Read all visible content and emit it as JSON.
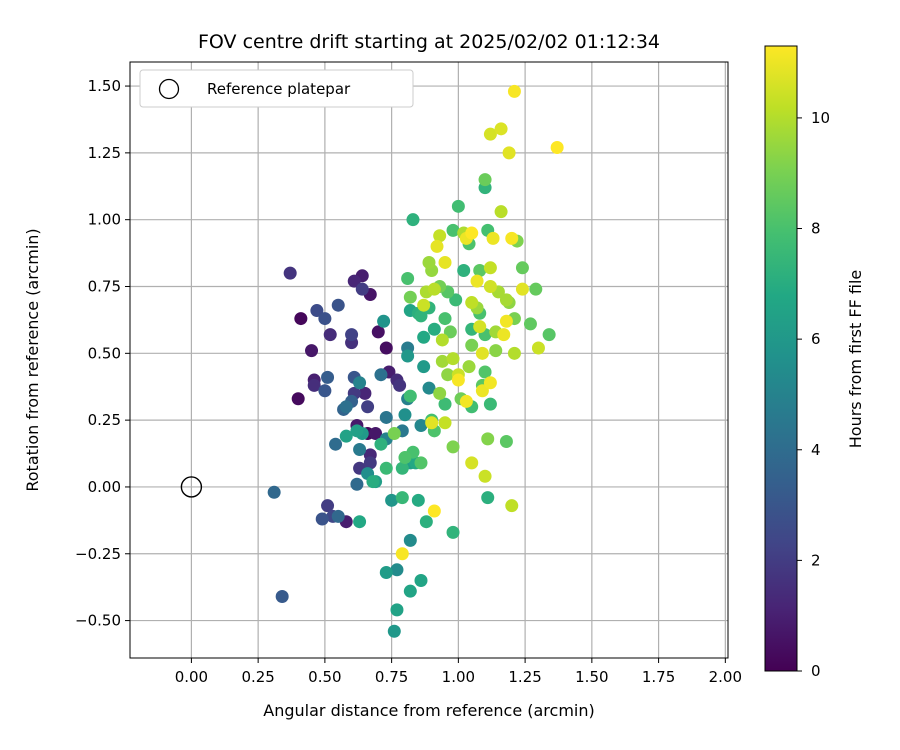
{
  "chart_data": {
    "type": "scatter",
    "title": "FOV centre drift starting at 2025/02/02 01:12:34",
    "xlabel": "Angular distance from reference (arcmin)",
    "ylabel": "Rotation from reference (arcmin)",
    "xlim": [
      -0.23,
      2.01
    ],
    "ylim": [
      -0.64,
      1.59
    ],
    "xticks": [
      0.0,
      0.25,
      0.5,
      0.75,
      1.0,
      1.25,
      1.5,
      1.75,
      2.0
    ],
    "xtick_labels": [
      "0.00",
      "0.25",
      "0.50",
      "0.75",
      "1.00",
      "1.25",
      "1.50",
      "1.75",
      "2.00"
    ],
    "yticks": [
      -0.5,
      -0.25,
      0.0,
      0.25,
      0.5,
      0.75,
      1.0,
      1.25,
      1.5
    ],
    "ytick_labels": [
      "−0.50",
      "−0.25",
      "0.00",
      "0.25",
      "0.50",
      "0.75",
      "1.00",
      "1.25",
      "1.50"
    ],
    "grid": true,
    "legend": {
      "placement": "upper-left",
      "entries": [
        "Reference platepar"
      ]
    },
    "reference_point": {
      "x": 0.0,
      "y": 0.0
    },
    "colorbar": {
      "label": "Hours from first FF file",
      "colormap": "viridis",
      "range": [
        0,
        11.3
      ],
      "ticks": [
        0,
        2,
        4,
        6,
        8,
        10
      ],
      "tick_labels": [
        "0",
        "2",
        "4",
        "6",
        "8",
        "10"
      ]
    },
    "points": [
      {
        "x": 0.41,
        "y": 0.63,
        "c": 0.2
      },
      {
        "x": 0.4,
        "y": 0.33,
        "c": 0.3
      },
      {
        "x": 0.66,
        "y": 0.2,
        "c": 0.2
      },
      {
        "x": 0.7,
        "y": 0.58,
        "c": 0.5
      },
      {
        "x": 0.73,
        "y": 0.52,
        "c": 0.4
      },
      {
        "x": 0.67,
        "y": 0.72,
        "c": 0.6
      },
      {
        "x": 0.45,
        "y": 0.51,
        "c": 0.7
      },
      {
        "x": 0.64,
        "y": 0.79,
        "c": 0.9
      },
      {
        "x": 0.46,
        "y": 0.4,
        "c": 1.0
      },
      {
        "x": 0.61,
        "y": 0.77,
        "c": 1.2
      },
      {
        "x": 0.58,
        "y": -0.13,
        "c": 0.9
      },
      {
        "x": 0.62,
        "y": 0.23,
        "c": 0.8
      },
      {
        "x": 0.69,
        "y": 0.2,
        "c": 0.7
      },
      {
        "x": 0.67,
        "y": 0.12,
        "c": 1.3
      },
      {
        "x": 0.74,
        "y": 0.43,
        "c": 0.9
      },
      {
        "x": 0.77,
        "y": 0.4,
        "c": 1.4
      },
      {
        "x": 0.37,
        "y": 0.8,
        "c": 1.7
      },
      {
        "x": 0.46,
        "y": 0.38,
        "c": 1.5
      },
      {
        "x": 0.52,
        "y": 0.57,
        "c": 1.4
      },
      {
        "x": 0.6,
        "y": 0.54,
        "c": 1.6
      },
      {
        "x": 0.63,
        "y": 0.07,
        "c": 1.8
      },
      {
        "x": 0.65,
        "y": 0.35,
        "c": 1.2
      },
      {
        "x": 0.61,
        "y": 0.35,
        "c": 1.9
      },
      {
        "x": 0.51,
        "y": -0.07,
        "c": 2.0
      },
      {
        "x": 0.67,
        "y": 0.09,
        "c": 1.9
      },
      {
        "x": 0.64,
        "y": 0.74,
        "c": 2.0
      },
      {
        "x": 0.78,
        "y": 0.38,
        "c": 1.7
      },
      {
        "x": 0.6,
        "y": 0.57,
        "c": 2.2
      },
      {
        "x": 0.66,
        "y": 0.3,
        "c": 2.1
      },
      {
        "x": 0.53,
        "y": -0.11,
        "c": 2.4
      },
      {
        "x": 0.47,
        "y": 0.66,
        "c": 2.6
      },
      {
        "x": 0.5,
        "y": 0.63,
        "c": 2.8
      },
      {
        "x": 0.49,
        "y": -0.12,
        "c": 2.9
      },
      {
        "x": 0.55,
        "y": 0.68,
        "c": 2.9
      },
      {
        "x": 0.61,
        "y": 0.41,
        "c": 3.0
      },
      {
        "x": 0.5,
        "y": 0.36,
        "c": 3.0
      },
      {
        "x": 0.51,
        "y": 0.41,
        "c": 3.3
      },
      {
        "x": 0.34,
        "y": -0.41,
        "c": 3.2
      },
      {
        "x": 0.6,
        "y": 0.32,
        "c": 3.5
      },
      {
        "x": 0.57,
        "y": 0.29,
        "c": 3.6
      },
      {
        "x": 0.31,
        "y": -0.02,
        "c": 3.8
      },
      {
        "x": 0.55,
        "y": -0.11,
        "c": 3.8
      },
      {
        "x": 0.62,
        "y": 0.01,
        "c": 3.9
      },
      {
        "x": 0.54,
        "y": 0.16,
        "c": 4.0
      },
      {
        "x": 0.58,
        "y": 0.3,
        "c": 4.2
      },
      {
        "x": 0.71,
        "y": 0.42,
        "c": 4.2
      },
      {
        "x": 0.73,
        "y": 0.26,
        "c": 4.4
      },
      {
        "x": 0.63,
        "y": 0.14,
        "c": 4.6
      },
      {
        "x": 0.81,
        "y": 0.52,
        "c": 4.7
      },
      {
        "x": 0.81,
        "y": 0.33,
        "c": 4.9
      },
      {
        "x": 0.79,
        "y": 0.21,
        "c": 4.5
      },
      {
        "x": 0.73,
        "y": 0.18,
        "c": 5.0
      },
      {
        "x": 0.63,
        "y": 0.39,
        "c": 5.0
      },
      {
        "x": 0.77,
        "y": -0.31,
        "c": 5.4
      },
      {
        "x": 0.82,
        "y": -0.2,
        "c": 5.4
      },
      {
        "x": 0.86,
        "y": 0.23,
        "c": 5.2
      },
      {
        "x": 0.89,
        "y": 0.37,
        "c": 5.3
      },
      {
        "x": 0.66,
        "y": 0.05,
        "c": 5.5
      },
      {
        "x": 0.72,
        "y": 0.62,
        "c": 5.8
      },
      {
        "x": 0.8,
        "y": 0.27,
        "c": 5.6
      },
      {
        "x": 0.75,
        "y": -0.05,
        "c": 5.9
      },
      {
        "x": 0.76,
        "y": -0.54,
        "c": 6.0
      },
      {
        "x": 0.73,
        "y": -0.32,
        "c": 6.2
      },
      {
        "x": 0.81,
        "y": 0.49,
        "c": 6.0
      },
      {
        "x": 0.69,
        "y": 0.02,
        "c": 6.3
      },
      {
        "x": 0.64,
        "y": 0.2,
        "c": 6.1
      },
      {
        "x": 0.58,
        "y": 0.19,
        "c": 6.5
      },
      {
        "x": 0.62,
        "y": 0.21,
        "c": 6.4
      },
      {
        "x": 0.82,
        "y": 0.09,
        "c": 6.3
      },
      {
        "x": 0.86,
        "y": -0.35,
        "c": 6.6
      },
      {
        "x": 0.82,
        "y": -0.39,
        "c": 6.6
      },
      {
        "x": 0.87,
        "y": 0.45,
        "c": 6.1
      },
      {
        "x": 0.84,
        "y": 0.09,
        "c": 6.8
      },
      {
        "x": 0.77,
        "y": -0.46,
        "c": 6.5
      },
      {
        "x": 0.87,
        "y": 0.56,
        "c": 6.8
      },
      {
        "x": 0.82,
        "y": 0.66,
        "c": 6.6
      },
      {
        "x": 0.85,
        "y": 0.65,
        "c": 7.1
      },
      {
        "x": 0.63,
        "y": -0.13,
        "c": 6.8
      },
      {
        "x": 0.68,
        "y": 0.02,
        "c": 7.0
      },
      {
        "x": 0.83,
        "y": 1.0,
        "c": 7.2
      },
      {
        "x": 0.88,
        "y": -0.13,
        "c": 7.1
      },
      {
        "x": 0.85,
        "y": -0.05,
        "c": 6.9
      },
      {
        "x": 0.91,
        "y": 0.59,
        "c": 7.0
      },
      {
        "x": 0.98,
        "y": -0.17,
        "c": 7.3
      },
      {
        "x": 1.11,
        "y": -0.04,
        "c": 7.1
      },
      {
        "x": 0.71,
        "y": 0.16,
        "c": 7.2
      },
      {
        "x": 0.79,
        "y": 0.07,
        "c": 7.4
      },
      {
        "x": 0.86,
        "y": 0.64,
        "c": 7.3
      },
      {
        "x": 0.89,
        "y": 0.67,
        "c": 7.3
      },
      {
        "x": 0.99,
        "y": 0.7,
        "c": 7.6
      },
      {
        "x": 1.02,
        "y": 0.81,
        "c": 7.2
      },
      {
        "x": 1.05,
        "y": 0.59,
        "c": 7.4
      },
      {
        "x": 1.1,
        "y": 1.12,
        "c": 7.3
      },
      {
        "x": 0.73,
        "y": 0.07,
        "c": 7.6
      },
      {
        "x": 0.79,
        "y": -0.04,
        "c": 7.5
      },
      {
        "x": 0.82,
        "y": 0.34,
        "c": 7.8
      },
      {
        "x": 0.9,
        "y": 0.25,
        "c": 7.9
      },
      {
        "x": 0.95,
        "y": 0.31,
        "c": 7.7
      },
      {
        "x": 1.0,
        "y": 1.05,
        "c": 7.8
      },
      {
        "x": 1.05,
        "y": 0.3,
        "c": 7.8
      },
      {
        "x": 1.08,
        "y": 0.65,
        "c": 8.0
      },
      {
        "x": 1.12,
        "y": 0.31,
        "c": 7.6
      },
      {
        "x": 1.11,
        "y": 0.96,
        "c": 7.9
      },
      {
        "x": 1.1,
        "y": 0.57,
        "c": 8.0
      },
      {
        "x": 0.91,
        "y": 0.21,
        "c": 8.1
      },
      {
        "x": 0.95,
        "y": 0.63,
        "c": 8.0
      },
      {
        "x": 0.8,
        "y": 0.11,
        "c": 8.1
      },
      {
        "x": 0.83,
        "y": 0.13,
        "c": 8.0
      },
      {
        "x": 0.86,
        "y": 0.09,
        "c": 8.2
      },
      {
        "x": 0.81,
        "y": 0.78,
        "c": 8.0
      },
      {
        "x": 0.96,
        "y": 0.73,
        "c": 8.3
      },
      {
        "x": 0.98,
        "y": 0.96,
        "c": 8.0
      },
      {
        "x": 1.04,
        "y": 0.91,
        "c": 8.1
      },
      {
        "x": 1.08,
        "y": 0.81,
        "c": 8.4
      },
      {
        "x": 1.09,
        "y": 0.38,
        "c": 8.4
      },
      {
        "x": 1.1,
        "y": 0.43,
        "c": 8.2
      },
      {
        "x": 1.18,
        "y": 0.17,
        "c": 8.4
      },
      {
        "x": 1.29,
        "y": 0.74,
        "c": 8.6
      },
      {
        "x": 1.27,
        "y": 0.61,
        "c": 8.5
      },
      {
        "x": 1.34,
        "y": 0.57,
        "c": 8.3
      },
      {
        "x": 1.24,
        "y": 0.82,
        "c": 8.6
      },
      {
        "x": 1.1,
        "y": 1.15,
        "c": 8.7
      },
      {
        "x": 0.82,
        "y": 0.71,
        "c": 8.9
      },
      {
        "x": 0.76,
        "y": 0.2,
        "c": 9.0
      },
      {
        "x": 0.93,
        "y": 0.75,
        "c": 8.9
      },
      {
        "x": 0.97,
        "y": 0.58,
        "c": 8.7
      },
      {
        "x": 1.01,
        "y": 0.33,
        "c": 8.8
      },
      {
        "x": 1.05,
        "y": 0.53,
        "c": 9.0
      },
      {
        "x": 1.11,
        "y": 0.18,
        "c": 9.2
      },
      {
        "x": 1.14,
        "y": 0.51,
        "c": 9.3
      },
      {
        "x": 1.21,
        "y": 0.63,
        "c": 9.0
      },
      {
        "x": 1.22,
        "y": 0.92,
        "c": 9.1
      },
      {
        "x": 1.19,
        "y": 0.69,
        "c": 9.4
      },
      {
        "x": 0.98,
        "y": 0.15,
        "c": 9.1
      },
      {
        "x": 0.9,
        "y": 0.81,
        "c": 9.5
      },
      {
        "x": 0.93,
        "y": 0.35,
        "c": 9.4
      },
      {
        "x": 0.96,
        "y": 0.42,
        "c": 9.4
      },
      {
        "x": 0.89,
        "y": 0.84,
        "c": 9.6
      },
      {
        "x": 0.94,
        "y": 0.47,
        "c": 9.7
      },
      {
        "x": 1.04,
        "y": 0.45,
        "c": 9.6
      },
      {
        "x": 1.07,
        "y": 0.67,
        "c": 9.6
      },
      {
        "x": 1.15,
        "y": 0.73,
        "c": 9.8
      },
      {
        "x": 1.18,
        "y": 0.7,
        "c": 9.8
      },
      {
        "x": 1.14,
        "y": 0.58,
        "c": 9.7
      },
      {
        "x": 0.88,
        "y": 0.73,
        "c": 9.9
      },
      {
        "x": 0.91,
        "y": 0.74,
        "c": 10.1
      },
      {
        "x": 0.94,
        "y": 0.55,
        "c": 10.0
      },
      {
        "x": 0.98,
        "y": 0.48,
        "c": 10.0
      },
      {
        "x": 1.02,
        "y": 0.95,
        "c": 9.9
      },
      {
        "x": 1.05,
        "y": 0.69,
        "c": 10.2
      },
      {
        "x": 1.12,
        "y": 0.82,
        "c": 10.3
      },
      {
        "x": 1.16,
        "y": 1.03,
        "c": 10.1
      },
      {
        "x": 1.21,
        "y": 0.5,
        "c": 10.0
      },
      {
        "x": 1.3,
        "y": 0.52,
        "c": 10.4
      },
      {
        "x": 1.2,
        "y": -0.07,
        "c": 10.2
      },
      {
        "x": 0.95,
        "y": 0.24,
        "c": 10.3
      },
      {
        "x": 1.1,
        "y": 0.04,
        "c": 10.4
      },
      {
        "x": 1.05,
        "y": 0.09,
        "c": 10.6
      },
      {
        "x": 0.87,
        "y": 0.68,
        "c": 10.4
      },
      {
        "x": 0.93,
        "y": 0.94,
        "c": 10.3
      },
      {
        "x": 1.0,
        "y": 0.42,
        "c": 10.4
      },
      {
        "x": 1.08,
        "y": 0.6,
        "c": 10.6
      },
      {
        "x": 1.12,
        "y": 0.75,
        "c": 10.5
      },
      {
        "x": 1.24,
        "y": 0.74,
        "c": 10.8
      },
      {
        "x": 1.12,
        "y": 1.32,
        "c": 10.6
      },
      {
        "x": 1.16,
        "y": 1.34,
        "c": 10.7
      },
      {
        "x": 1.19,
        "y": 1.25,
        "c": 10.8
      },
      {
        "x": 0.9,
        "y": 0.24,
        "c": 10.8
      },
      {
        "x": 0.92,
        "y": 0.9,
        "c": 10.9
      },
      {
        "x": 0.95,
        "y": 0.84,
        "c": 10.9
      },
      {
        "x": 1.03,
        "y": 0.93,
        "c": 11.0
      },
      {
        "x": 1.07,
        "y": 0.77,
        "c": 11.0
      },
      {
        "x": 1.09,
        "y": 0.36,
        "c": 11.0
      },
      {
        "x": 1.12,
        "y": 0.39,
        "c": 11.1
      },
      {
        "x": 1.17,
        "y": 0.57,
        "c": 11.0
      },
      {
        "x": 1.2,
        "y": 0.93,
        "c": 11.2
      },
      {
        "x": 1.21,
        "y": 1.48,
        "c": 11.2
      },
      {
        "x": 1.37,
        "y": 1.27,
        "c": 11.3
      },
      {
        "x": 0.79,
        "y": -0.25,
        "c": 11.2
      },
      {
        "x": 0.91,
        "y": -0.09,
        "c": 11.3
      },
      {
        "x": 1.03,
        "y": 0.32,
        "c": 11.1
      },
      {
        "x": 1.05,
        "y": 0.95,
        "c": 11.3
      },
      {
        "x": 1.0,
        "y": 0.4,
        "c": 11.2
      },
      {
        "x": 1.13,
        "y": 0.93,
        "c": 11.0
      },
      {
        "x": 1.18,
        "y": 0.62,
        "c": 11.1
      },
      {
        "x": 1.09,
        "y": 0.5,
        "c": 10.8
      }
    ]
  }
}
